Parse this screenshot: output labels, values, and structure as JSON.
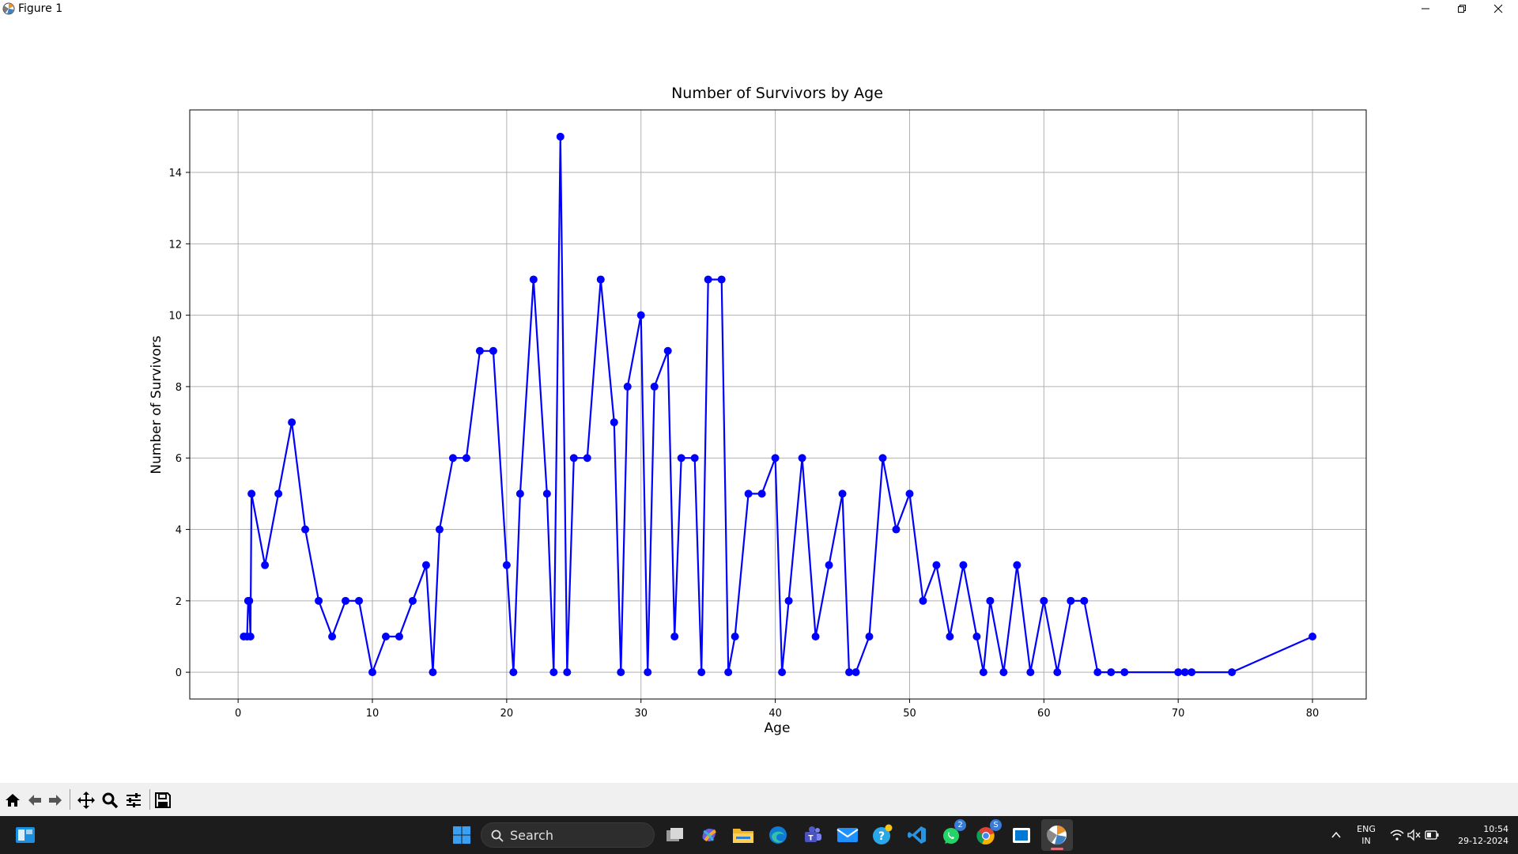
{
  "window": {
    "title": "Figure 1",
    "app_icon": "matplotlib-icon",
    "controls": [
      "minimize-icon",
      "restore-icon",
      "close-icon"
    ]
  },
  "chart_data": {
    "type": "line",
    "title": "Number of Survivors by Age",
    "xlabel": "Age",
    "ylabel": "Number of Survivors",
    "xlim": [
      -3.6,
      84.0
    ],
    "ylim": [
      -0.75,
      15.75
    ],
    "xticks": [
      0,
      10,
      20,
      30,
      40,
      50,
      60,
      70,
      80
    ],
    "yticks": [
      0,
      2,
      4,
      6,
      8,
      10,
      12,
      14
    ],
    "grid": true,
    "color": "#0000ff",
    "marker": "circle",
    "x": [
      0.42,
      0.67,
      0.75,
      0.83,
      0.92,
      1,
      2,
      3,
      4,
      5,
      6,
      7,
      8,
      9,
      10,
      11,
      12,
      13,
      14,
      14.5,
      15,
      16,
      17,
      18,
      19,
      20,
      20.5,
      21,
      22,
      23,
      23.5,
      24,
      24.5,
      25,
      26,
      27,
      28,
      28.5,
      29,
      30,
      30.5,
      31,
      32,
      32.5,
      33,
      34,
      34.5,
      35,
      36,
      36.5,
      37,
      38,
      39,
      40,
      40.5,
      41,
      42,
      43,
      44,
      45,
      45.5,
      46,
      47,
      48,
      49,
      50,
      51,
      52,
      53,
      54,
      55,
      55.5,
      56,
      57,
      58,
      59,
      60,
      61,
      62,
      63,
      64,
      65,
      66,
      70,
      70.5,
      71,
      74,
      80
    ],
    "y": [
      1,
      1,
      2,
      2,
      1,
      5,
      3,
      5,
      7,
      4,
      2,
      1,
      2,
      2,
      0,
      1,
      1,
      2,
      3,
      0,
      4,
      6,
      6,
      9,
      9,
      3,
      0,
      5,
      11,
      5,
      0,
      15,
      0,
      6,
      6,
      11,
      7,
      0,
      8,
      10,
      0,
      8,
      9,
      1,
      6,
      6,
      0,
      11,
      11,
      0,
      1,
      5,
      5,
      6,
      0,
      2,
      6,
      1,
      3,
      5,
      0,
      0,
      1,
      6,
      4,
      5,
      2,
      3,
      1,
      3,
      1,
      0,
      2,
      0,
      3,
      0,
      2,
      0,
      2,
      2,
      0,
      0,
      0,
      0,
      0,
      0,
      0,
      1
    ]
  },
  "toolbar": {
    "buttons": [
      "home-icon",
      "back-icon",
      "forward-icon",
      "pan-icon",
      "zoom-icon",
      "configure-subplots-icon",
      "save-icon"
    ]
  },
  "taskbar": {
    "search_label": "Search",
    "language": "ENG",
    "region": "IN",
    "time": "10:54",
    "date": "29-12-2024",
    "whatsapp_badge": "2",
    "chrome_badge": "S"
  }
}
